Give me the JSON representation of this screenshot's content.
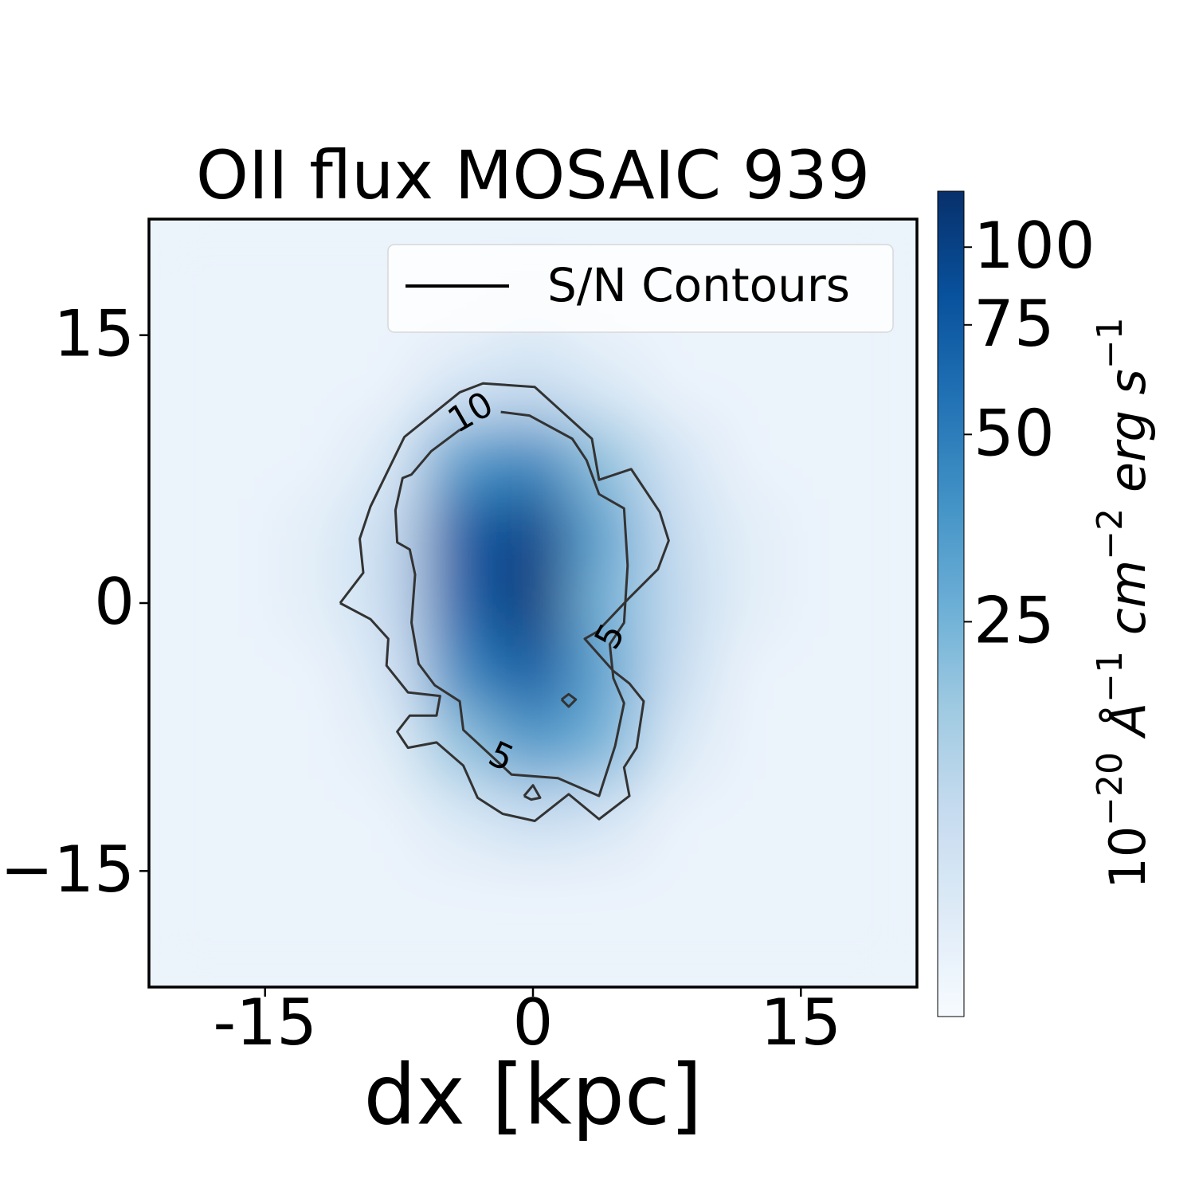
{
  "chart_data": {
    "type": "heatmap",
    "title": "OII flux MOSAIC 939",
    "x_label": "dx [kpc]",
    "xlim": [
      -21.5,
      21.5
    ],
    "ylim": [
      -21.5,
      21.5
    ],
    "xticks": [
      -15,
      0,
      15
    ],
    "yticks": [
      {
        "value": -15,
        "label": "−15"
      },
      0,
      15
    ],
    "x": [
      -20,
      -16,
      -12,
      -8,
      -4,
      0,
      4,
      8,
      12,
      16,
      20
    ],
    "y": [
      20,
      16,
      12,
      8,
      4,
      0,
      -4,
      -8,
      -12,
      -16,
      -20
    ],
    "z": [
      [
        7,
        7,
        7,
        7,
        7,
        7,
        7,
        7,
        7,
        7,
        7
      ],
      [
        7,
        7,
        7,
        7,
        7,
        8,
        7,
        7,
        7,
        7,
        7
      ],
      [
        7,
        7,
        7,
        7,
        10,
        12,
        9,
        7,
        7,
        7,
        7
      ],
      [
        7,
        7,
        7,
        9,
        35,
        45,
        20,
        10,
        7,
        7,
        7
      ],
      [
        7,
        7,
        8,
        12,
        75,
        100,
        30,
        12,
        8,
        7,
        7
      ],
      [
        7,
        7,
        8,
        12,
        70,
        110,
        25,
        13,
        8,
        7,
        7
      ],
      [
        7,
        7,
        7,
        10,
        45,
        75,
        30,
        12,
        7,
        7,
        7
      ],
      [
        7,
        7,
        7,
        8,
        20,
        35,
        25,
        9,
        7,
        7,
        7
      ],
      [
        7,
        7,
        7,
        7,
        9,
        12,
        10,
        7,
        7,
        7,
        7
      ],
      [
        7,
        7,
        7,
        7,
        7,
        7,
        7,
        7,
        7,
        7,
        7
      ],
      [
        7,
        7,
        7,
        7,
        7,
        7,
        7,
        7,
        7,
        7,
        7
      ]
    ],
    "colormap": "Blues",
    "color_scale": "log",
    "clim": [
      5.8,
      123
    ],
    "cticks": [
      25,
      50,
      75,
      100
    ],
    "colorbar_label": [
      [
        "10",
        "−20"
      ],
      [
        "Å",
        "−1"
      ],
      [
        "cm",
        "−2"
      ],
      [
        "erg s",
        "−1"
      ]
    ],
    "contour_color": "#333333",
    "contours": [
      {
        "level": 5,
        "x": [
          -10.8,
          -9.5,
          -9.7,
          -9.1,
          -7.2,
          -4.1,
          -2.8,
          0.1,
          3.3,
          3.7,
          5.5,
          7.1,
          7.6,
          7.0,
          5.4,
          3.6,
          2.9,
          4.5,
          5.4,
          6.2,
          5.8,
          5.1,
          5.4,
          3.7,
          2.0,
          0.1,
          -1.7,
          -3.1,
          -3.9,
          -5.4,
          -7.0,
          -7.6,
          -6.9,
          -5.4,
          -5.2,
          -7.0,
          -8.2,
          -8.1,
          -9.1,
          -10.8
        ],
        "y": [
          0,
          1.7,
          3.6,
          5.4,
          9.3,
          11.8,
          12.3,
          12.1,
          9.2,
          6.9,
          7.5,
          5.1,
          3.5,
          1.9,
          0.3,
          -1.6,
          -2.0,
          -3.8,
          -4.5,
          -5.5,
          -8.1,
          -9.2,
          -10.8,
          -12.1,
          -10.7,
          -12.2,
          -11.8,
          -10.9,
          -9.1,
          -7.8,
          -8.1,
          -7.2,
          -6.3,
          -6.3,
          -5.2,
          -5.0,
          -3.5,
          -2.0,
          -0.9,
          0
        ]
      },
      {
        "level": 10,
        "x": [
          -1.8,
          -0.2,
          2.2,
          3.0,
          3.7,
          5.1,
          5.3,
          5.1,
          4.3,
          4.5,
          5.1,
          4.6,
          3.7,
          1.4,
          -1.2,
          -3.9,
          -4.1,
          -5.5,
          -6.4,
          -6.8,
          -6.6,
          -6.9,
          -7.6,
          -7.7,
          -7.3,
          -6.8,
          -5.7,
          -4.1
        ],
        "y": [
          10.7,
          10.5,
          9.2,
          8.0,
          6.1,
          5.3,
          2.1,
          -1.1,
          -2.3,
          -4.2,
          -5.6,
          -8.0,
          -10.8,
          -9.8,
          -9.6,
          -7.1,
          -5.5,
          -4.6,
          -3.4,
          -1.1,
          1.6,
          3.0,
          3.4,
          5.2,
          7.0,
          7.2,
          8.5,
          9.7
        ]
      },
      {
        "x": [
          1.6,
          2.0,
          2.4,
          2.0,
          1.6
        ],
        "y": [
          -5.4,
          -5.1,
          -5.4,
          -5.8,
          -5.4
        ]
      },
      {
        "x": [
          -0.5,
          0,
          0.4,
          -0.1,
          -0.5
        ],
        "y": [
          -10.8,
          -10.2,
          -10.9,
          -11.0,
          -10.8
        ]
      }
    ],
    "legend": {
      "label": "S/N Contours",
      "loc": "upper right"
    }
  }
}
